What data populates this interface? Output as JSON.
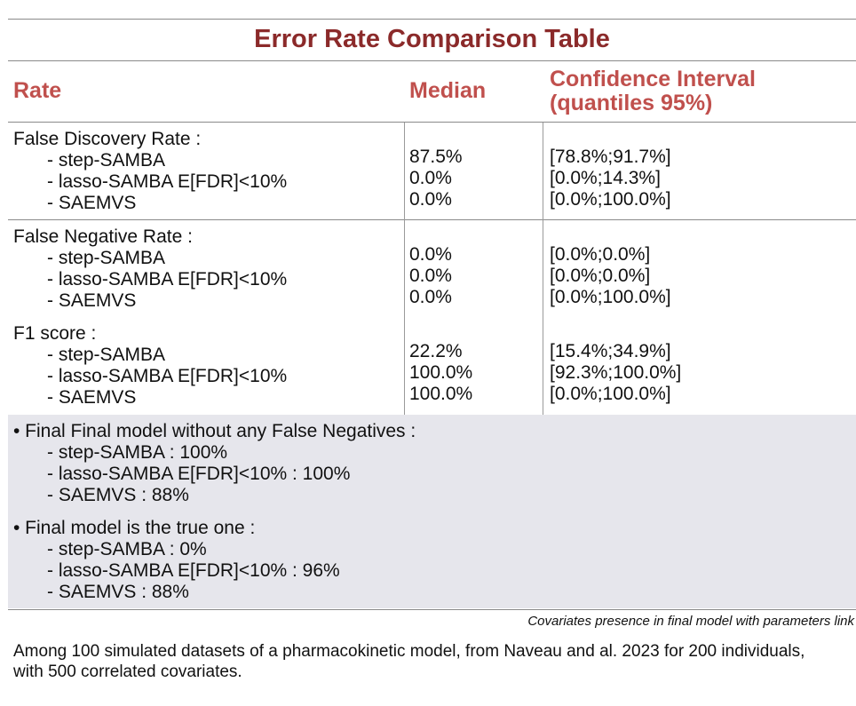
{
  "title": "Error Rate Comparison Table",
  "headers": {
    "rate": "Rate",
    "median": "Median",
    "ci_line1": "Confidence Interval",
    "ci_line2": "(quantiles 95%)"
  },
  "sections": {
    "fdr": {
      "label": "False Discovery Rate :",
      "methods": [
        "- step-SAMBA",
        "- lasso-SAMBA E[FDR]<10%",
        "- SAEMVS"
      ],
      "medians": [
        "87.5%",
        "0.0%",
        "0.0%"
      ],
      "intervals": [
        "[78.8%;91.7%]",
        "[0.0%;14.3%]",
        "[0.0%;100.0%]"
      ]
    },
    "fnr": {
      "label": "False Negative Rate :",
      "methods": [
        "- step-SAMBA",
        "- lasso-SAMBA E[FDR]<10%",
        "- SAEMVS"
      ],
      "medians": [
        "0.0%",
        "0.0%",
        "0.0%"
      ],
      "intervals": [
        "[0.0%;0.0%]",
        "[0.0%;0.0%]",
        "[0.0%;100.0%]"
      ]
    },
    "f1": {
      "label": "F1 score :",
      "methods": [
        "- step-SAMBA",
        "- lasso-SAMBA E[FDR]<10%",
        "- SAEMVS"
      ],
      "medians": [
        "22.2%",
        "100.0%",
        "100.0%"
      ],
      "intervals": [
        "[15.4%;34.9%]",
        "[92.3%;100.0%]",
        "[0.0%;100.0%]"
      ]
    }
  },
  "summary": {
    "no_fn": {
      "label": "• Final Final model without any False Negatives :",
      "items": [
        "- step-SAMBA : 100%",
        "- lasso-SAMBA E[FDR]<10% : 100%",
        "- SAEMVS : 88%"
      ]
    },
    "true_model": {
      "label": "• Final model is the true one :",
      "items": [
        "- step-SAMBA : 0%",
        "- lasso-SAMBA E[FDR]<10% : 96%",
        "- SAEMVS : 88%"
      ]
    }
  },
  "caption": "Covariates presence in final model with parameters link",
  "footnote": "Among 100 simulated datasets of a pharmacokinetic model, from Naveau and al. 2023 for 200 individuals, with 500 correlated covariates."
}
